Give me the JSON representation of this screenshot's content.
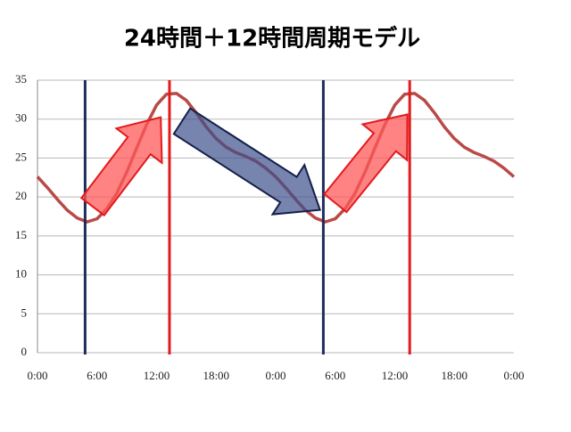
{
  "chart_data": {
    "type": "line",
    "title": "24時間＋12時間周期モデル",
    "x": [
      0,
      1,
      2,
      3,
      4,
      5,
      6,
      7,
      8,
      9,
      10,
      11,
      12,
      13,
      14,
      15,
      16,
      17,
      18,
      19,
      20,
      21,
      22,
      23,
      24,
      25,
      26,
      27,
      28,
      29,
      30,
      31,
      32,
      33,
      34,
      35,
      36,
      37,
      38,
      39,
      40,
      41,
      42,
      43,
      44,
      45,
      46,
      47,
      48
    ],
    "series": [
      {
        "color": "#b94a48",
        "values": [
          22.6,
          21.2,
          19.7,
          18.3,
          17.3,
          16.8,
          17.2,
          18.5,
          20.5,
          23.2,
          26.3,
          29.3,
          31.8,
          33.2,
          33.3,
          32.4,
          30.8,
          29.0,
          27.5,
          26.4,
          25.7,
          25.2,
          24.6,
          23.7,
          22.6,
          21.2,
          19.7,
          18.3,
          17.3,
          16.8,
          17.2,
          18.5,
          20.5,
          23.2,
          26.3,
          29.3,
          31.8,
          33.2,
          33.3,
          32.4,
          30.8,
          29.0,
          27.5,
          26.4,
          25.7,
          25.2,
          24.6,
          23.7,
          22.6
        ]
      }
    ],
    "xlim": [
      0,
      48
    ],
    "xticks": [
      {
        "value": 0,
        "label": "0:00"
      },
      {
        "value": 6,
        "label": "6:00"
      },
      {
        "value": 12,
        "label": "12:00"
      },
      {
        "value": 18,
        "label": "18:00"
      },
      {
        "value": 24,
        "label": "0:00"
      },
      {
        "value": 30,
        "label": "6:00"
      },
      {
        "value": 36,
        "label": "12:00"
      },
      {
        "value": 42,
        "label": "18:00"
      },
      {
        "value": 48,
        "label": "0:00"
      }
    ],
    "ylim": [
      0,
      35
    ],
    "yticks": [
      0,
      5,
      10,
      15,
      20,
      25,
      30,
      35
    ],
    "grid": true,
    "vlines": [
      {
        "x": 4.8,
        "color": "#1f2d5a"
      },
      {
        "x": 13.3,
        "color": "#e31a1c"
      },
      {
        "x": 28.8,
        "color": "#1f2d5a"
      },
      {
        "x": 37.5,
        "color": "#e31a1c"
      }
    ]
  }
}
